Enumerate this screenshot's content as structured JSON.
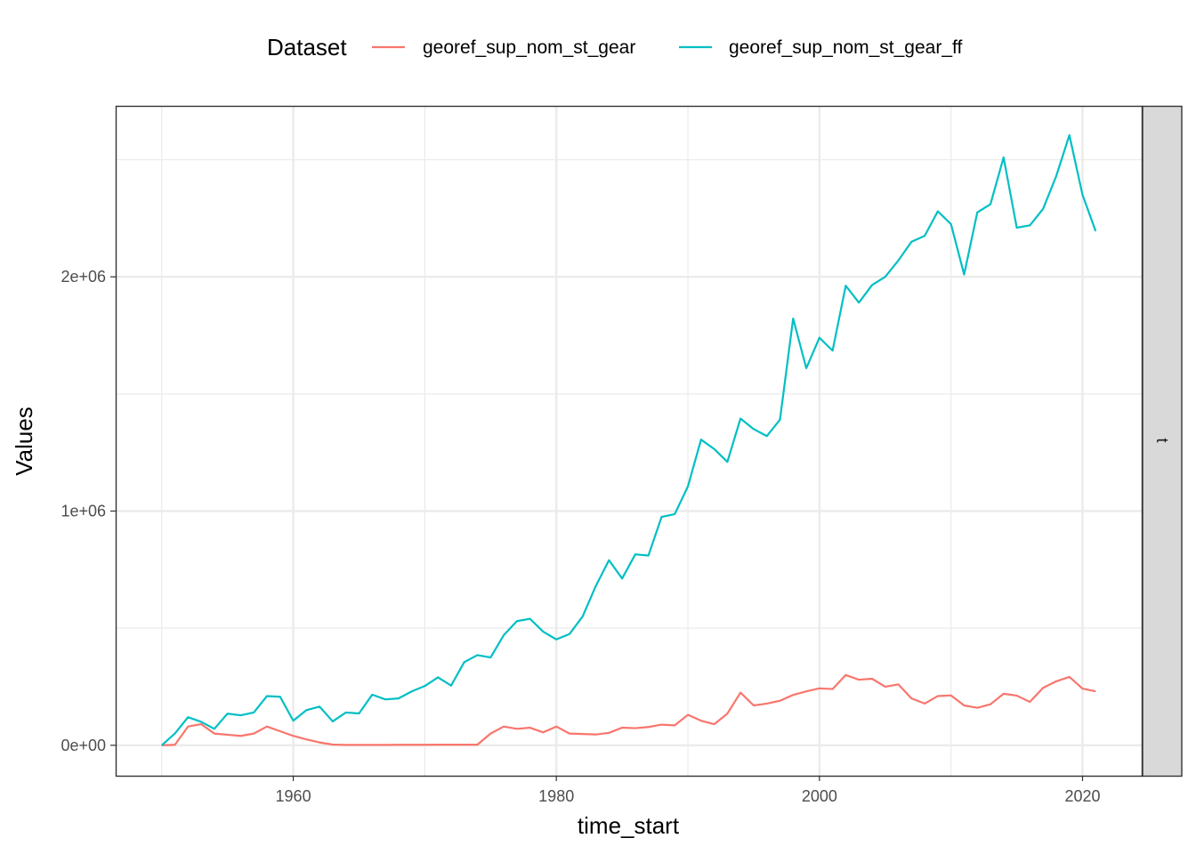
{
  "chart_data": {
    "type": "line",
    "xlabel": "time_start",
    "ylabel": "Values",
    "xlim": [
      1946.5,
      2024.5
    ],
    "ylim": [
      -130000,
      2730000
    ],
    "x_ticks": [
      1960,
      1980,
      2000,
      2020
    ],
    "x_tick_labels": [
      "1960",
      "1980",
      "2000",
      "2020"
    ],
    "x_minor_ticks": [
      1950,
      1970,
      1990,
      2010
    ],
    "y_ticks": [
      0,
      1000000,
      2000000
    ],
    "y_tick_labels": [
      "0e+00",
      "1e+06",
      "2e+06"
    ],
    "y_minor_ticks": [
      500000,
      1500000,
      2500000
    ],
    "grid": true,
    "legend": {
      "title": "Dataset",
      "position": "top"
    },
    "facet_strip": "t",
    "x": [
      1950,
      1951,
      1952,
      1953,
      1954,
      1955,
      1956,
      1957,
      1958,
      1959,
      1960,
      1961,
      1962,
      1963,
      1964,
      1965,
      1966,
      1967,
      1968,
      1969,
      1970,
      1971,
      1972,
      1973,
      1974,
      1975,
      1976,
      1977,
      1978,
      1979,
      1980,
      1981,
      1982,
      1983,
      1984,
      1985,
      1986,
      1987,
      1988,
      1989,
      1990,
      1991,
      1992,
      1993,
      1994,
      1995,
      1996,
      1997,
      1998,
      1999,
      2000,
      2001,
      2002,
      2003,
      2004,
      2005,
      2006,
      2007,
      2008,
      2009,
      2010,
      2011,
      2012,
      2013,
      2014,
      2015,
      2016,
      2017,
      2018,
      2019,
      2020,
      2021
    ],
    "series": [
      {
        "name": "georef_sup_nom_st_gear",
        "color": "#F8766D",
        "values": [
          0,
          2000,
          80000,
          90000,
          50000,
          45000,
          40000,
          50000,
          80000,
          60000,
          40000,
          25000,
          12000,
          3000,
          1500,
          1500,
          1500,
          1500,
          2000,
          2000,
          2000,
          2500,
          2500,
          2500,
          2500,
          50000,
          80000,
          70000,
          75000,
          55000,
          80000,
          50000,
          48000,
          46000,
          53000,
          75000,
          73000,
          78000,
          88000,
          85000,
          130000,
          105000,
          90000,
          135000,
          225000,
          170000,
          178000,
          190000,
          215000,
          230000,
          243000,
          240000,
          300000,
          280000,
          284000,
          250000,
          260000,
          200000,
          178000,
          210000,
          213000,
          170000,
          160000,
          175000,
          220000,
          212000,
          185000,
          245000,
          273000,
          292000,
          242000,
          230000
        ]
      },
      {
        "name": "georef_sup_nom_st_gear_ff",
        "color": "#00BFC4",
        "values": [
          0,
          50000,
          120000,
          100000,
          70000,
          135000,
          128000,
          140000,
          210000,
          207000,
          105000,
          150000,
          165000,
          102000,
          140000,
          136000,
          216000,
          196000,
          200000,
          230000,
          253000,
          290000,
          255000,
          355000,
          385000,
          375000,
          470000,
          530000,
          540000,
          485000,
          452000,
          475000,
          550000,
          680000,
          790000,
          712000,
          815000,
          810000,
          975000,
          987000,
          1105000,
          1305000,
          1265000,
          1210000,
          1395000,
          1350000,
          1320000,
          1390000,
          1822000,
          1610000,
          1740000,
          1685000,
          1962000,
          1890000,
          1965000,
          2000000,
          2070000,
          2150000,
          2175000,
          2280000,
          2225000,
          2010000,
          2275000,
          2310000,
          2510000,
          2210000,
          2220000,
          2290000,
          2430000,
          2605000,
          2350000,
          2195000
        ]
      }
    ]
  }
}
